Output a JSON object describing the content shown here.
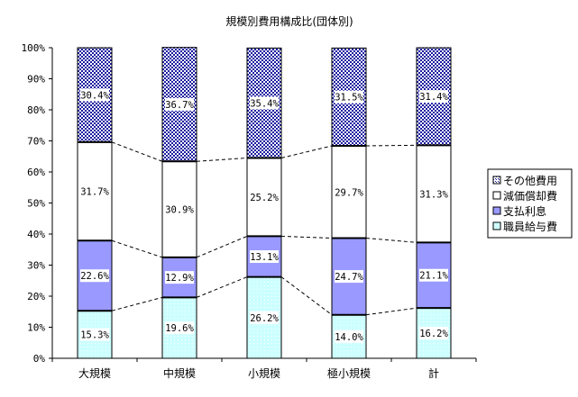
{
  "chart_data": {
    "type": "bar",
    "stacked": true,
    "percent": true,
    "title": "規模別費用構成比(団体別)",
    "categories": [
      "大規模",
      "中規模",
      "小規模",
      "極小規模",
      "計"
    ],
    "series": [
      {
        "name": "職員給与費",
        "values": [
          15.3,
          19.6,
          26.2,
          14.0,
          16.2
        ],
        "labels": [
          "15.3%",
          "19.6%",
          "26.2%",
          "14.0%",
          "16.2%"
        ],
        "color": "#ccffff",
        "pattern": "dots-light"
      },
      {
        "name": "支払利息",
        "values": [
          22.6,
          12.9,
          13.1,
          24.7,
          21.1
        ],
        "labels": [
          "22.6%",
          "12.9%",
          "13.1%",
          "24.7%",
          "21.1%"
        ],
        "color": "#9999ff",
        "pattern": "solid"
      },
      {
        "name": "減価償却費",
        "values": [
          31.7,
          30.9,
          25.2,
          29.7,
          31.3
        ],
        "labels": [
          "31.7%",
          "30.9%",
          "25.2%",
          "29.7%",
          "31.3%"
        ],
        "color": "#ffffff",
        "pattern": "solid"
      },
      {
        "name": "その他費用",
        "values": [
          30.4,
          36.7,
          35.4,
          31.5,
          31.4
        ],
        "labels": [
          "30.4%",
          "36.7%",
          "35.4%",
          "31.5%",
          "31.4%"
        ],
        "color": "#2222aa",
        "pattern": "dots-dense"
      }
    ],
    "legend_order": [
      "その他費用",
      "減価償却費",
      "支払利息",
      "職員給与費"
    ],
    "yticks": [
      "0%",
      "10%",
      "20%",
      "30%",
      "40%",
      "50%",
      "60%",
      "70%",
      "80%",
      "90%",
      "100%"
    ],
    "ylim": [
      0,
      100
    ],
    "grid": false,
    "legend_position": "right",
    "series_lines": "dashed"
  }
}
